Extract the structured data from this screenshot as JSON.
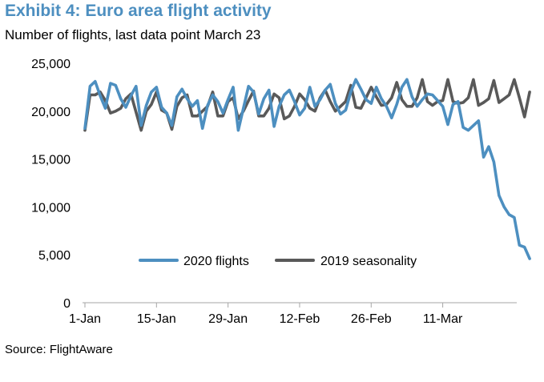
{
  "title": "Exhibit 4: Euro area flight activity",
  "subtitle": "Number of flights, last data point March 23",
  "source": "Source: FlightAware",
  "chart_data": {
    "type": "line",
    "title": "Exhibit 4: Euro area flight activity",
    "subtitle": "Number of flights, last data point March 23",
    "xlabel": "",
    "ylabel": "",
    "ylim": [
      0,
      25000
    ],
    "yticks": [
      0,
      5000,
      10000,
      15000,
      20000,
      25000
    ],
    "ytick_labels": [
      "0",
      "5,000",
      "10,000",
      "15,000",
      "20,000",
      "25,000"
    ],
    "xtick_labels": [
      "1-Jan",
      "15-Jan",
      "29-Jan",
      "12-Feb",
      "26-Feb",
      "11-Mar"
    ],
    "xtick_days": [
      0,
      14,
      28,
      42,
      56,
      70
    ],
    "x_start": "1-Jan",
    "grid": false,
    "legend_position": "bottom-center",
    "series": [
      {
        "name": "2020 flights",
        "color": "#4d8fc0",
        "values": [
          18200,
          22600,
          23100,
          21600,
          20300,
          22900,
          22700,
          21300,
          20400,
          21600,
          22600,
          18500,
          20600,
          22000,
          22500,
          20400,
          19800,
          18500,
          21500,
          22300,
          21300,
          20500,
          21100,
          18200,
          20600,
          21700,
          21000,
          19800,
          21200,
          22500,
          18000,
          20300,
          22600,
          22000,
          19700,
          21300,
          22200,
          18400,
          20500,
          21700,
          22200,
          21000,
          19600,
          20300,
          22500,
          20500,
          21200,
          22200,
          22800,
          20800,
          19700,
          20100,
          22000,
          23300,
          22300,
          21200,
          20800,
          22500,
          21300,
          20500,
          19300,
          20700,
          22500,
          23300,
          21500,
          20500,
          21200,
          21800,
          21700,
          21100,
          20500,
          18600,
          20700,
          21000,
          18300,
          18000,
          18500,
          19000,
          15200,
          16300,
          14700,
          11200,
          10000,
          9200,
          8900,
          6000,
          5800,
          4600
        ]
      },
      {
        "name": "2019 seasonality",
        "color": "#595959",
        "values": [
          18000,
          21700,
          21700,
          22000,
          21100,
          19800,
          20000,
          20300,
          21300,
          21800,
          19900,
          18000,
          20000,
          20700,
          22000,
          20100,
          19800,
          18100,
          20500,
          21400,
          21700,
          19500,
          19500,
          20000,
          20500,
          22000,
          19500,
          19500,
          21000,
          21400,
          19200,
          20000,
          21100,
          22100,
          19500,
          19500,
          20300,
          21800,
          21400,
          19200,
          19500,
          20500,
          21800,
          21200,
          20300,
          20000,
          21400,
          22200,
          21000,
          20000,
          20500,
          21000,
          22700,
          20400,
          20300,
          21400,
          22500,
          21500,
          20600,
          20700,
          21400,
          23000,
          21200,
          20500,
          20500,
          21400,
          23300,
          21000,
          20600,
          21000,
          21100,
          23300,
          21000,
          20800,
          20900,
          21400,
          23300,
          20600,
          20900,
          21300,
          23200,
          20900,
          21300,
          21700,
          23300,
          21400,
          19400,
          22000
        ]
      }
    ]
  }
}
